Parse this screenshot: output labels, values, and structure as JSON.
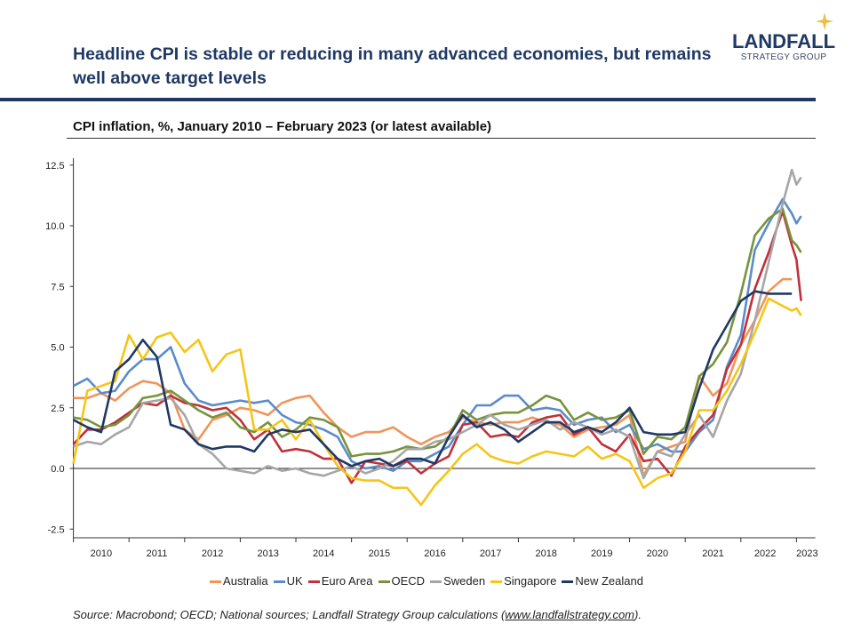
{
  "header": {
    "title": "Headline CPI is stable or reducing in many advanced economies, but remains well above target levels",
    "logo_line1": "LANDFALL",
    "logo_line2": "STRATEGY GROUP"
  },
  "footer": {
    "source_prefix": "Source: Macrobond; OECD; National sources; Landfall Strategy Group calculations (",
    "source_link": "www.landfallstrategy.com",
    "source_suffix": ")."
  },
  "chart_data": {
    "type": "line",
    "title": "CPI inflation, %, January 2010 – February 2023 (or latest available)",
    "xlabel": "",
    "ylabel": "",
    "ylim": [
      -2.5,
      12.5
    ],
    "yticks": [
      "12.5",
      "10.0",
      "7.5",
      "5.0",
      "2.5",
      "0.0",
      "-2.5"
    ],
    "xticks": [
      "2010",
      "2011",
      "2012",
      "2013",
      "2014",
      "2015",
      "2016",
      "2017",
      "2018",
      "2019",
      "2020",
      "2021",
      "2022",
      "2023"
    ],
    "xlim": [
      "2010-01",
      "2023-02"
    ],
    "grid": false,
    "legend": "bottom",
    "x": [
      "2010-01",
      "2010-04",
      "2010-07",
      "2010-10",
      "2011-01",
      "2011-04",
      "2011-07",
      "2011-10",
      "2012-01",
      "2012-04",
      "2012-07",
      "2012-10",
      "2013-01",
      "2013-04",
      "2013-07",
      "2013-10",
      "2014-01",
      "2014-04",
      "2014-07",
      "2014-10",
      "2015-01",
      "2015-04",
      "2015-07",
      "2015-10",
      "2016-01",
      "2016-04",
      "2016-07",
      "2016-10",
      "2017-01",
      "2017-04",
      "2017-07",
      "2017-10",
      "2018-01",
      "2018-04",
      "2018-07",
      "2018-10",
      "2019-01",
      "2019-04",
      "2019-07",
      "2019-10",
      "2020-01",
      "2020-04",
      "2020-07",
      "2020-10",
      "2021-01",
      "2021-04",
      "2021-07",
      "2021-10",
      "2022-01",
      "2022-04",
      "2022-07",
      "2022-10",
      "2022-12",
      "2023-01",
      "2023-02"
    ],
    "series": [
      {
        "name": "Australia",
        "color": "#F0955A",
        "values": [
          2.9,
          2.9,
          3.1,
          2.8,
          3.3,
          3.6,
          3.5,
          3.1,
          1.6,
          1.2,
          2.0,
          2.2,
          2.5,
          2.4,
          2.2,
          2.7,
          2.9,
          3.0,
          2.3,
          1.7,
          1.3,
          1.5,
          1.5,
          1.7,
          1.3,
          1.0,
          1.3,
          1.5,
          2.1,
          1.9,
          1.8,
          1.9,
          1.9,
          2.1,
          1.9,
          1.8,
          1.3,
          1.6,
          1.7,
          1.8,
          2.2,
          -0.3,
          0.7,
          0.9,
          1.1,
          3.8,
          3.0,
          3.5,
          5.1,
          6.1,
          7.3,
          7.8,
          7.8,
          null,
          null
        ]
      },
      {
        "name": "UK",
        "color": "#5B8CC9",
        "values": [
          3.4,
          3.7,
          3.1,
          3.2,
          4.0,
          4.5,
          4.5,
          5.0,
          3.5,
          2.8,
          2.6,
          2.7,
          2.8,
          2.7,
          2.8,
          2.2,
          1.9,
          1.8,
          1.6,
          1.3,
          0.3,
          0.0,
          0.1,
          -0.1,
          0.3,
          0.3,
          0.6,
          0.9,
          1.8,
          2.6,
          2.6,
          3.0,
          3.0,
          2.4,
          2.5,
          2.4,
          1.8,
          2.0,
          2.1,
          1.5,
          1.8,
          0.8,
          1.0,
          0.7,
          0.7,
          1.5,
          2.0,
          4.2,
          5.5,
          9.0,
          10.1,
          11.1,
          10.5,
          10.1,
          10.4
        ]
      },
      {
        "name": "Euro Area",
        "color": "#C0313A",
        "values": [
          1.0,
          1.6,
          1.6,
          1.9,
          2.3,
          2.7,
          2.6,
          3.0,
          2.7,
          2.6,
          2.4,
          2.5,
          2.0,
          1.2,
          1.6,
          0.7,
          0.8,
          0.7,
          0.4,
          0.4,
          -0.6,
          0.3,
          0.2,
          0.1,
          0.3,
          -0.2,
          0.2,
          0.5,
          1.8,
          1.9,
          1.3,
          1.4,
          1.3,
          1.9,
          2.1,
          2.2,
          1.4,
          1.7,
          1.0,
          0.7,
          1.4,
          0.3,
          0.4,
          -0.3,
          0.9,
          1.6,
          2.2,
          4.1,
          5.1,
          7.4,
          8.9,
          10.6,
          9.2,
          8.6,
          6.9
        ]
      },
      {
        "name": "OECD",
        "color": "#77933C",
        "values": [
          2.1,
          2.0,
          1.7,
          1.8,
          2.2,
          2.9,
          3.0,
          3.2,
          2.8,
          2.4,
          2.1,
          2.3,
          1.7,
          1.5,
          1.9,
          1.3,
          1.6,
          2.1,
          2.0,
          1.7,
          0.5,
          0.6,
          0.6,
          0.7,
          0.9,
          0.8,
          0.9,
          1.3,
          2.4,
          2.0,
          2.2,
          2.3,
          2.3,
          2.6,
          3.0,
          2.8,
          2.0,
          2.3,
          2.0,
          2.1,
          2.4,
          0.6,
          1.3,
          1.2,
          1.7,
          3.8,
          4.3,
          5.2,
          7.2,
          9.6,
          10.3,
          10.7,
          9.4,
          9.2,
          8.9
        ]
      },
      {
        "name": "Sweden",
        "color": "#A6A6A6",
        "values": [
          0.9,
          1.1,
          1.0,
          1.4,
          1.7,
          2.7,
          2.8,
          2.9,
          2.2,
          1.0,
          0.6,
          0.0,
          -0.1,
          -0.2,
          0.1,
          -0.1,
          0.0,
          -0.2,
          -0.3,
          -0.1,
          0.1,
          -0.2,
          0.0,
          0.3,
          0.8,
          0.8,
          1.1,
          1.2,
          1.5,
          1.8,
          2.2,
          1.8,
          1.6,
          1.8,
          2.0,
          1.6,
          1.9,
          1.7,
          1.4,
          1.6,
          1.3,
          -0.4,
          0.7,
          0.5,
          1.4,
          2.2,
          1.3,
          2.8,
          3.9,
          6.1,
          8.5,
          10.9,
          12.3,
          11.7,
          12.0
        ]
      },
      {
        "name": "Singapore",
        "color": "#F5C518",
        "values": [
          0.2,
          3.2,
          3.4,
          3.6,
          5.5,
          4.5,
          5.4,
          5.6,
          4.8,
          5.3,
          4.0,
          4.7,
          4.9,
          1.6,
          1.6,
          2.0,
          1.2,
          2.0,
          1.0,
          0.1,
          -0.4,
          -0.5,
          -0.5,
          -0.8,
          -0.8,
          -1.5,
          -0.7,
          -0.1,
          0.6,
          1.0,
          0.5,
          0.3,
          0.2,
          0.5,
          0.7,
          0.6,
          0.5,
          0.9,
          0.4,
          0.6,
          0.3,
          -0.8,
          -0.4,
          -0.2,
          0.7,
          2.4,
          2.4,
          3.2,
          4.3,
          5.6,
          7.0,
          6.7,
          6.5,
          6.6,
          6.3
        ]
      },
      {
        "name": "New Zealand",
        "color": "#1F3864",
        "values": [
          2.0,
          1.7,
          1.5,
          4.0,
          4.5,
          5.3,
          4.6,
          1.8,
          1.6,
          1.0,
          0.8,
          0.9,
          0.9,
          0.7,
          1.4,
          1.6,
          1.5,
          1.6,
          1.0,
          0.4,
          0.1,
          0.3,
          0.4,
          0.1,
          0.4,
          0.4,
          0.2,
          1.3,
          2.2,
          1.7,
          1.9,
          1.6,
          1.1,
          1.5,
          1.9,
          1.9,
          1.5,
          1.7,
          1.5,
          1.9,
          2.5,
          1.5,
          1.4,
          1.4,
          1.5,
          3.3,
          4.9,
          5.9,
          6.9,
          7.3,
          7.2,
          7.2,
          7.2,
          null,
          null
        ]
      }
    ]
  }
}
